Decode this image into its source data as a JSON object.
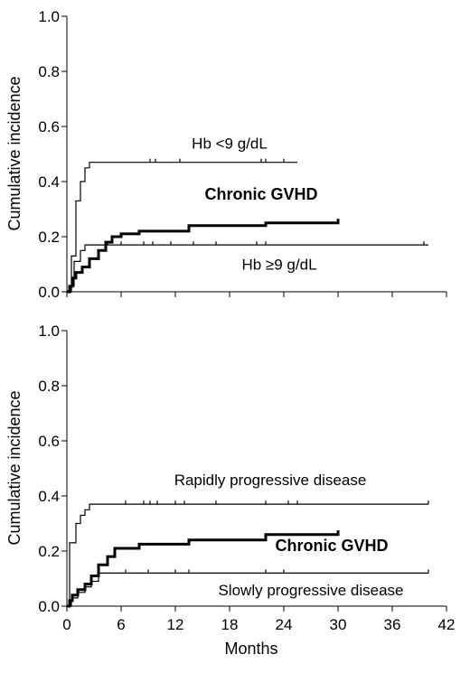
{
  "chart_data": [
    {
      "type": "line",
      "title": "",
      "xlabel": "",
      "ylabel": "Cumulative incidence",
      "xlim": [
        0,
        42
      ],
      "ylim": [
        0,
        1.0
      ],
      "yticks": [
        "0.0",
        "0.2",
        "0.4",
        "0.6",
        "0.8",
        "1.0"
      ],
      "xticks": [],
      "annotations": [
        {
          "text": "Hb <9 g/dL",
          "x": 18,
          "y": 0.52,
          "bold": false
        },
        {
          "text": "Chronic GVHD",
          "x": 21.5,
          "y": 0.335,
          "bold": true
        },
        {
          "text": "Hb ≥9 g/dL",
          "x": 23.5,
          "y": 0.08,
          "bold": false
        }
      ],
      "series": [
        {
          "style": "thin",
          "points": [
            [
              0,
              0
            ],
            [
              0.5,
              0
            ],
            [
              0.5,
              0.13
            ],
            [
              1,
              0.13
            ],
            [
              1,
              0.33
            ],
            [
              1.5,
              0.33
            ],
            [
              1.5,
              0.4
            ],
            [
              2,
              0.4
            ],
            [
              2,
              0.45
            ],
            [
              2.5,
              0.45
            ],
            [
              2.5,
              0.47
            ],
            [
              25.5,
              0.47
            ]
          ],
          "censors": [
            9.2,
            9.8,
            12.5,
            21.5,
            22,
            24
          ]
        },
        {
          "style": "thin",
          "points": [
            [
              0,
              0
            ],
            [
              0.4,
              0
            ],
            [
              0.4,
              0.02
            ],
            [
              0.8,
              0.02
            ],
            [
              0.8,
              0.11
            ],
            [
              1.5,
              0.11
            ],
            [
              1.5,
              0.15
            ],
            [
              2,
              0.15
            ],
            [
              2,
              0.17
            ],
            [
              40,
              0.17
            ]
          ],
          "censors": [
            4.5,
            6,
            8.5,
            9.5,
            11.5,
            14,
            16.5,
            21,
            22,
            39.5
          ]
        },
        {
          "style": "thick",
          "points": [
            [
              0,
              0
            ],
            [
              0.3,
              0
            ],
            [
              0.3,
              0.02
            ],
            [
              0.6,
              0.02
            ],
            [
              0.6,
              0.05
            ],
            [
              1,
              0.05
            ],
            [
              1,
              0.07
            ],
            [
              1.7,
              0.07
            ],
            [
              1.7,
              0.09
            ],
            [
              2.5,
              0.09
            ],
            [
              2.5,
              0.12
            ],
            [
              3.5,
              0.12
            ],
            [
              3.5,
              0.15
            ],
            [
              4.3,
              0.15
            ],
            [
              4.3,
              0.18
            ],
            [
              5,
              0.18
            ],
            [
              5,
              0.2
            ],
            [
              6,
              0.2
            ],
            [
              6,
              0.21
            ],
            [
              8,
              0.21
            ],
            [
              8,
              0.22
            ],
            [
              13.5,
              0.22
            ],
            [
              13.5,
              0.24
            ],
            [
              22,
              0.24
            ],
            [
              22,
              0.25
            ],
            [
              30,
              0.25
            ],
            [
              30,
              0.265
            ]
          ],
          "censors": []
        }
      ]
    },
    {
      "type": "line",
      "title": "",
      "xlabel": "Months",
      "ylabel": "Cumulative incidence",
      "xlim": [
        0,
        42
      ],
      "ylim": [
        0,
        1.0
      ],
      "yticks": [
        "0.0",
        "0.2",
        "0.4",
        "0.6",
        "0.8",
        "1.0"
      ],
      "xticks": [
        "0",
        "6",
        "12",
        "18",
        "24",
        "30",
        "36",
        "42"
      ],
      "annotations": [
        {
          "text": "Rapidly progressive disease",
          "x": 22.5,
          "y": 0.44,
          "bold": false
        },
        {
          "text": "Chronic GVHD",
          "x": 29.3,
          "y": 0.2,
          "bold": true
        },
        {
          "text": "Slowly progressive disease",
          "x": 27,
          "y": 0.04,
          "bold": false
        }
      ],
      "series": [
        {
          "style": "thin",
          "points": [
            [
              0,
              0
            ],
            [
              0.3,
              0
            ],
            [
              0.3,
              0.23
            ],
            [
              1,
              0.23
            ],
            [
              1,
              0.3
            ],
            [
              1.5,
              0.3
            ],
            [
              1.5,
              0.33
            ],
            [
              2,
              0.33
            ],
            [
              2,
              0.35
            ],
            [
              2.5,
              0.35
            ],
            [
              2.5,
              0.37
            ],
            [
              40,
              0.37
            ]
          ],
          "censors": [
            6.5,
            8.5,
            9.2,
            10,
            12,
            13,
            16.5,
            22,
            24.5,
            25.5,
            40
          ]
        },
        {
          "style": "thin",
          "points": [
            [
              0,
              0
            ],
            [
              0.5,
              0
            ],
            [
              0.5,
              0.03
            ],
            [
              1.2,
              0.03
            ],
            [
              1.2,
              0.05
            ],
            [
              2,
              0.05
            ],
            [
              2,
              0.07
            ],
            [
              2.7,
              0.07
            ],
            [
              2.7,
              0.09
            ],
            [
              3.5,
              0.09
            ],
            [
              3.5,
              0.12
            ],
            [
              40,
              0.12
            ]
          ],
          "censors": [
            6.5,
            9,
            12,
            13.5,
            22,
            24,
            40
          ]
        },
        {
          "style": "thick",
          "points": [
            [
              0,
              0
            ],
            [
              0.3,
              0
            ],
            [
              0.3,
              0.02
            ],
            [
              0.6,
              0.02
            ],
            [
              0.6,
              0.04
            ],
            [
              1.2,
              0.04
            ],
            [
              1.2,
              0.06
            ],
            [
              2,
              0.06
            ],
            [
              2,
              0.08
            ],
            [
              2.7,
              0.08
            ],
            [
              2.7,
              0.11
            ],
            [
              3.5,
              0.11
            ],
            [
              3.5,
              0.15
            ],
            [
              4.5,
              0.15
            ],
            [
              4.5,
              0.18
            ],
            [
              5.3,
              0.18
            ],
            [
              5.3,
              0.21
            ],
            [
              8,
              0.21
            ],
            [
              8,
              0.225
            ],
            [
              13.5,
              0.225
            ],
            [
              13.5,
              0.24
            ],
            [
              22,
              0.24
            ],
            [
              22,
              0.26
            ],
            [
              30,
              0.26
            ],
            [
              30,
              0.275
            ]
          ],
          "censors": []
        }
      ]
    }
  ]
}
